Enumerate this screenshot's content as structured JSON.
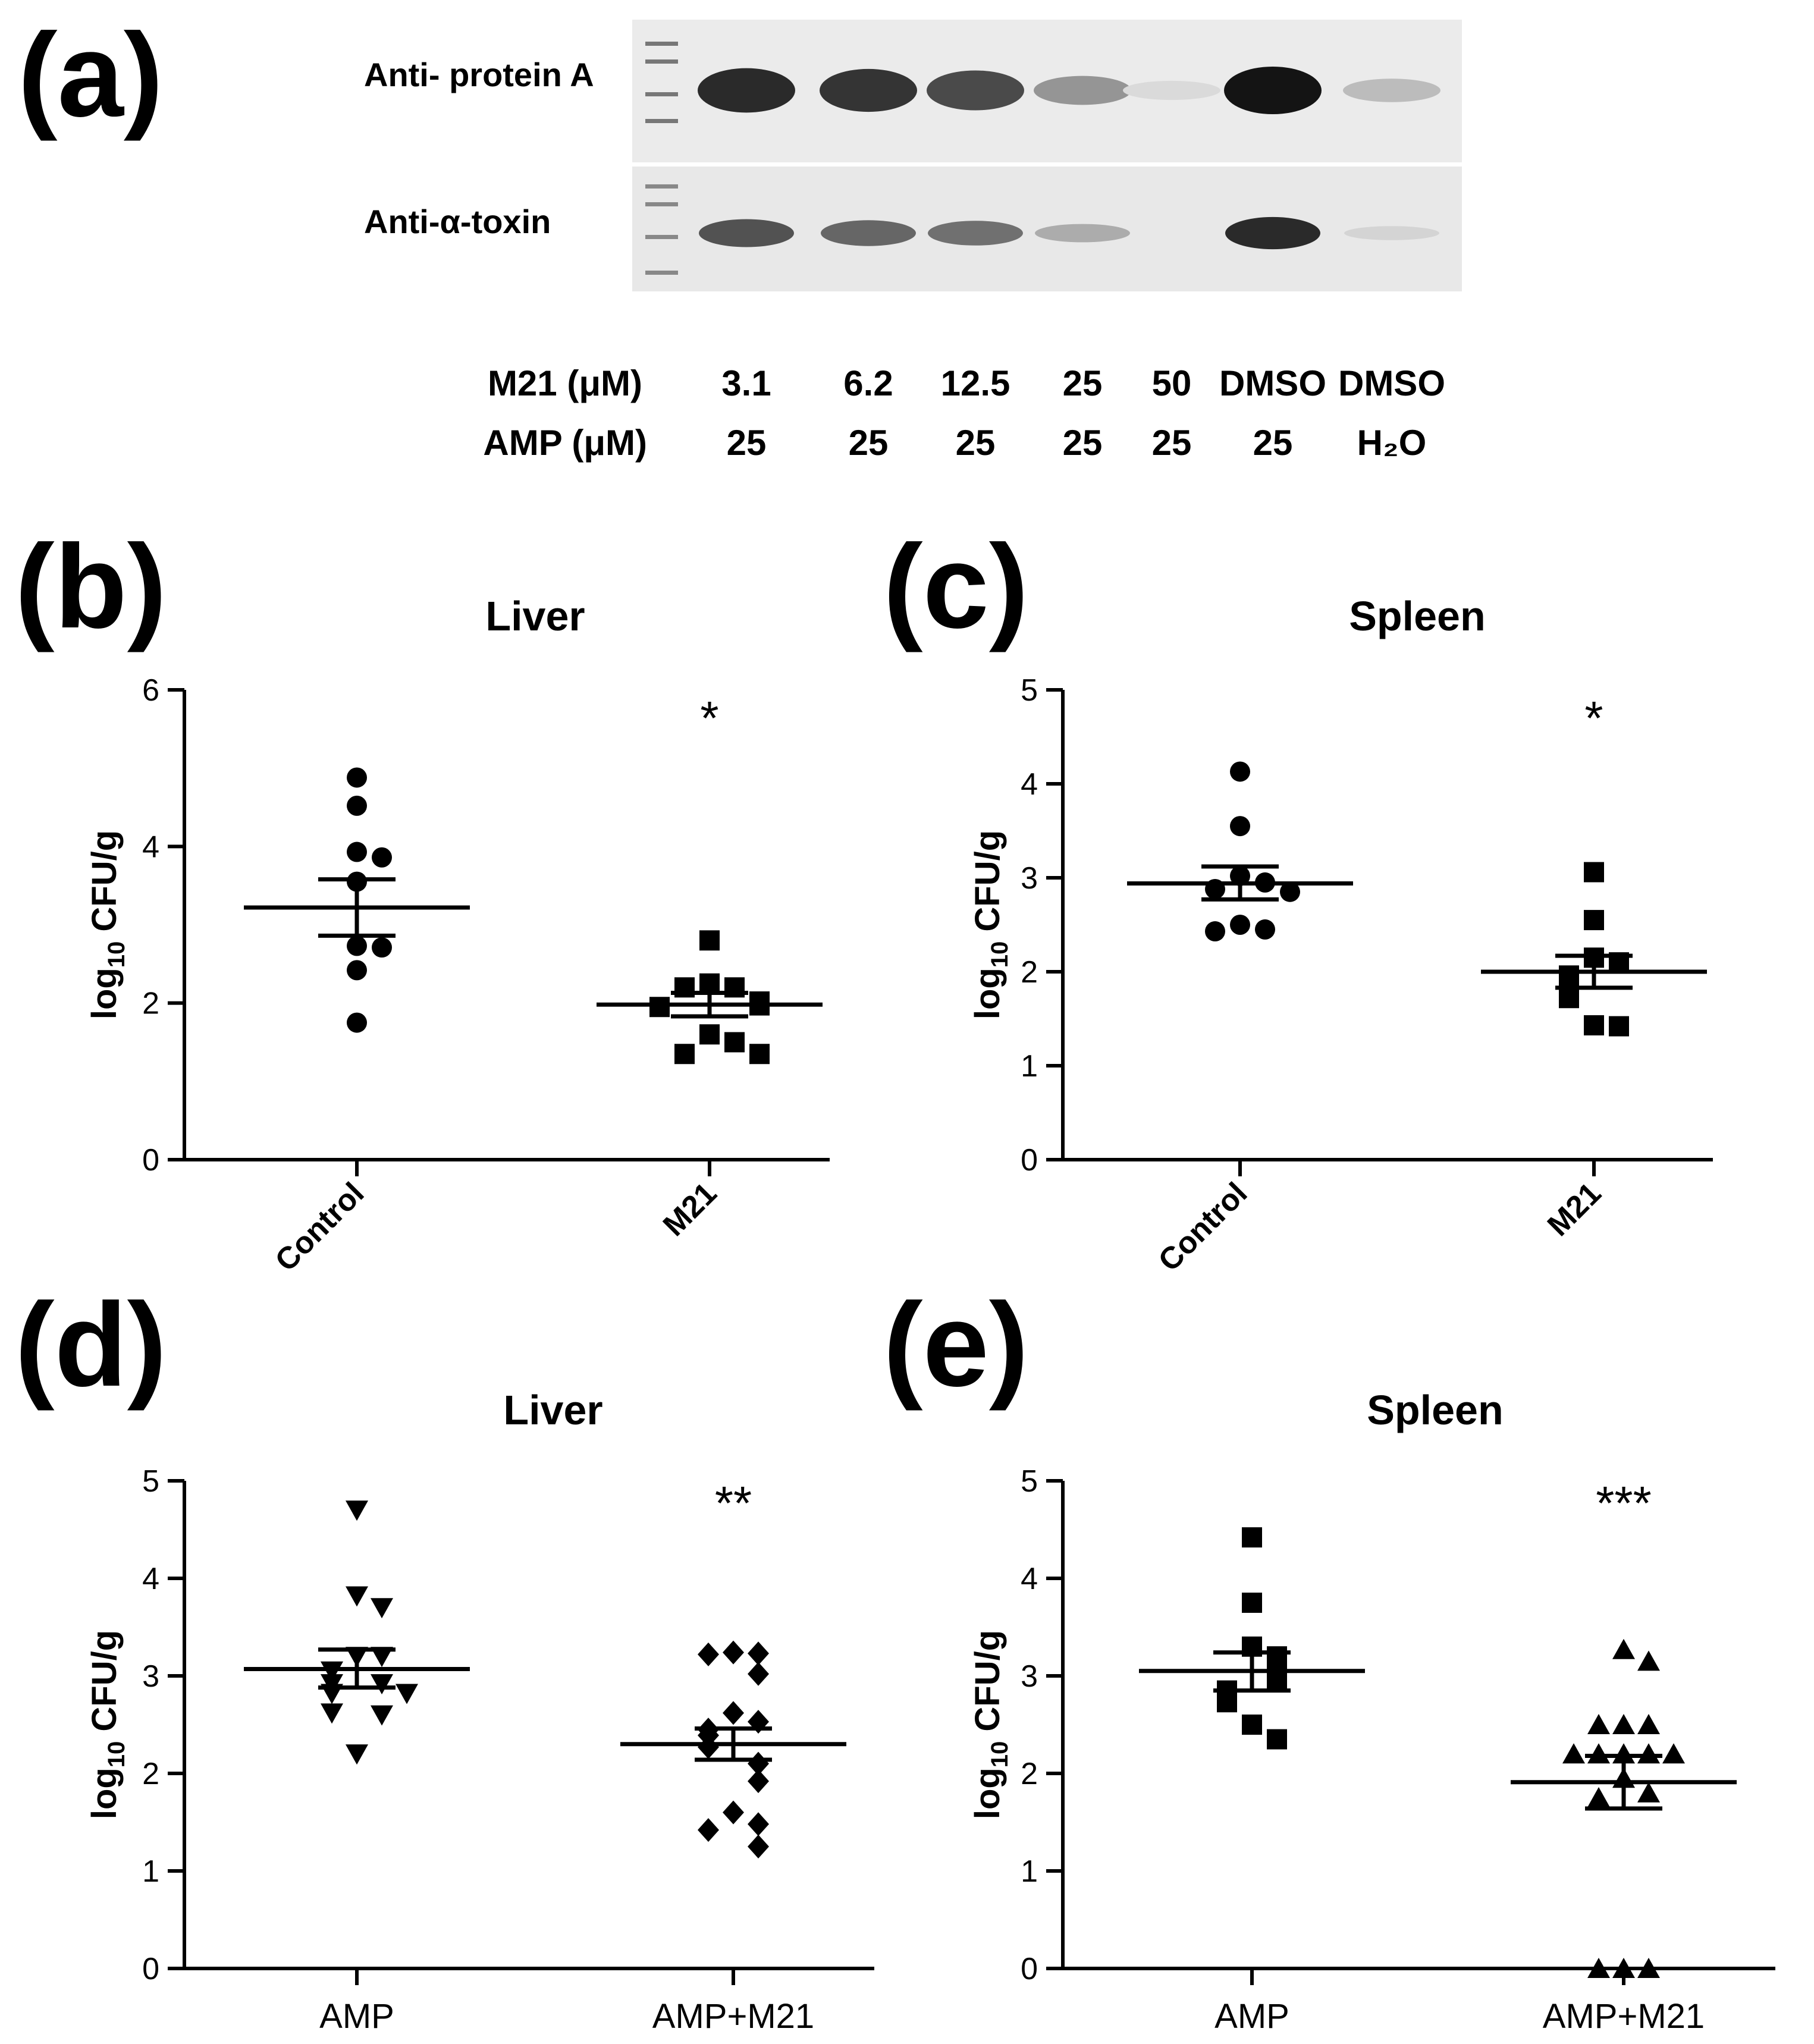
{
  "panel_a": {
    "letter": "(a)",
    "blot_labels": [
      "Anti- protein A",
      "Anti-α-toxin"
    ],
    "conditions": {
      "m21_label": "M21 (μM)",
      "amp_label": "AMP (μM)",
      "lanes": [
        {
          "m21": "3.1",
          "amp": "25",
          "protein_a": 0.9,
          "alpha_toxin": 0.75
        },
        {
          "m21": "6.2",
          "amp": "25",
          "protein_a": 0.85,
          "alpha_toxin": 0.65
        },
        {
          "m21": "12.5",
          "amp": "25",
          "protein_a": 0.75,
          "alpha_toxin": 0.6
        },
        {
          "m21": "25",
          "amp": "25",
          "protein_a": 0.4,
          "alpha_toxin": 0.3
        },
        {
          "m21": "50",
          "amp": "25",
          "protein_a": 0.08,
          "alpha_toxin": 0.0
        },
        {
          "m21": "DMSO",
          "amp": "25",
          "protein_a": 1.0,
          "alpha_toxin": 0.95
        },
        {
          "m21": "DMSO",
          "amp": "H₂O",
          "protein_a": 0.22,
          "alpha_toxin": 0.1
        }
      ]
    }
  },
  "chart_data": [
    {
      "id": "b",
      "letter": "(b)",
      "type": "scatter",
      "title": "Liver",
      "ylabel_main": "log",
      "ylabel_sub": "10",
      "ylabel_rest": " CFU/g",
      "ylim": [
        0,
        6
      ],
      "yticks": [
        0,
        2,
        4,
        6
      ],
      "xlabel_rotated": true,
      "significance": "*",
      "groups": [
        {
          "name": "Control",
          "marker": "circle",
          "mean": 3.22,
          "sem_low": 2.86,
          "sem_high": 3.58,
          "values": [
            4.88,
            4.52,
            3.93,
            3.86,
            3.55,
            2.73,
            2.71,
            2.42,
            1.75
          ]
        },
        {
          "name": "M21",
          "marker": "square",
          "mean": 1.98,
          "sem_low": 1.83,
          "sem_high": 2.13,
          "values": [
            2.8,
            2.25,
            2.2,
            2.2,
            2.02,
            1.97,
            1.95,
            1.6,
            1.5,
            1.35,
            1.35
          ]
        }
      ]
    },
    {
      "id": "c",
      "letter": "(c)",
      "type": "scatter",
      "title": "Spleen",
      "ylabel_main": "log",
      "ylabel_sub": "10",
      "ylabel_rest": " CFU/g",
      "ylim": [
        0,
        5
      ],
      "yticks": [
        0,
        1,
        2,
        3,
        4,
        5
      ],
      "xlabel_rotated": true,
      "significance": "*",
      "groups": [
        {
          "name": "Control",
          "marker": "circle",
          "mean": 2.94,
          "sem_low": 2.77,
          "sem_high": 3.12,
          "values": [
            4.13,
            3.55,
            3.02,
            2.95,
            2.88,
            2.85,
            2.5,
            2.45,
            2.43
          ]
        },
        {
          "name": "M21",
          "marker": "square",
          "mean": 2.0,
          "sem_low": 1.83,
          "sem_high": 2.17,
          "values": [
            3.06,
            2.55,
            2.15,
            2.1,
            1.96,
            1.9,
            1.75,
            1.72,
            1.43,
            1.42
          ]
        }
      ]
    },
    {
      "id": "d",
      "letter": "(d)",
      "type": "scatter",
      "title": "Liver",
      "ylabel_main": "log",
      "ylabel_sub": "10",
      "ylabel_rest": " CFU/g",
      "ylim": [
        0,
        5
      ],
      "yticks": [
        0,
        1,
        2,
        3,
        4,
        5
      ],
      "xlabel_rotated": false,
      "significance": "**",
      "groups": [
        {
          "name": "AMP",
          "marker": "triangle-down",
          "mean": 3.07,
          "sem_low": 2.88,
          "sem_high": 3.27,
          "values": [
            4.7,
            3.82,
            3.7,
            3.2,
            3.2,
            3.05,
            2.92,
            2.92,
            2.82,
            2.82,
            2.62,
            2.6,
            2.2
          ]
        },
        {
          "name": "AMP+M21",
          "marker": "diamond",
          "mean": 2.3,
          "sem_low": 2.14,
          "sem_high": 2.46,
          "values": [
            3.24,
            3.23,
            3.22,
            3.02,
            2.62,
            2.53,
            2.45,
            2.39,
            2.27,
            2.1,
            1.92,
            1.6,
            1.48,
            1.42,
            1.25
          ]
        }
      ]
    },
    {
      "id": "e",
      "letter": "(e)",
      "type": "scatter",
      "title": "Spleen",
      "ylabel_main": "log",
      "ylabel_sub": "10",
      "ylabel_rest": " CFU/g",
      "ylim": [
        0,
        5
      ],
      "yticks": [
        0,
        1,
        2,
        3,
        4,
        5
      ],
      "xlabel_rotated": false,
      "significance": "***",
      "groups": [
        {
          "name": "AMP",
          "marker": "square",
          "mean": 3.05,
          "sem_low": 2.85,
          "sem_high": 3.24,
          "values": [
            4.42,
            3.75,
            3.3,
            3.2,
            3.05,
            2.95,
            2.85,
            2.8,
            2.73,
            2.5,
            2.35
          ]
        },
        {
          "name": "AMP+M21",
          "marker": "triangle-up",
          "mean": 1.91,
          "sem_low": 1.64,
          "sem_high": 2.18,
          "values": [
            3.27,
            3.15,
            2.5,
            2.5,
            2.5,
            2.2,
            2.2,
            2.2,
            2.2,
            2.2,
            1.95,
            1.8,
            1.75,
            0.0,
            0.0,
            0.0
          ]
        }
      ]
    }
  ]
}
